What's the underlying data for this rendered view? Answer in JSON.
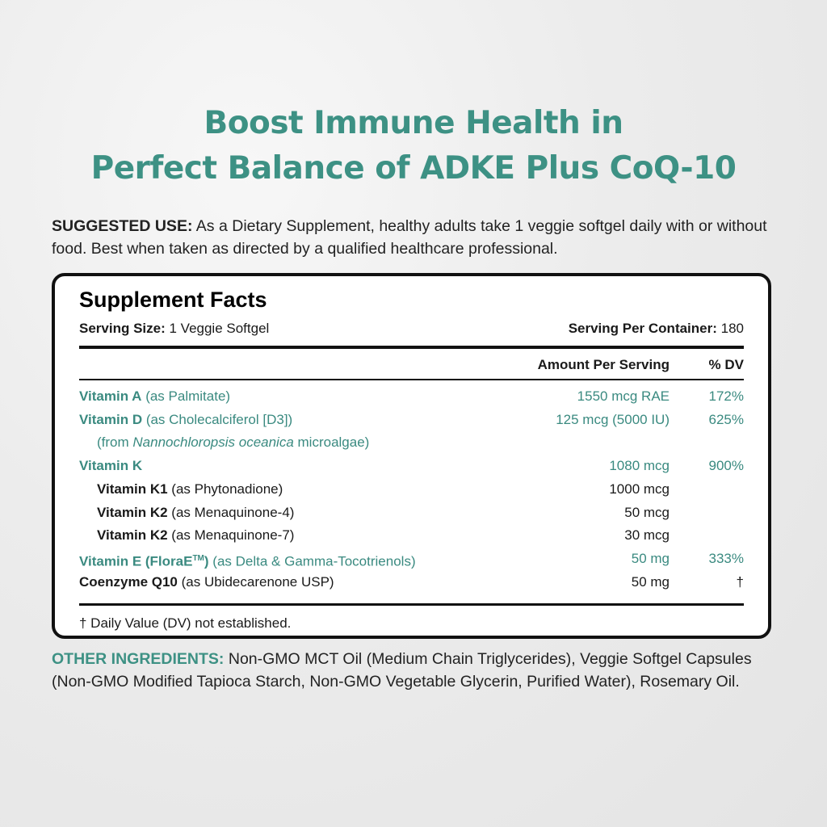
{
  "headline": {
    "line1": "Boost Immune Health in",
    "line2": "Perfect Balance of ADKE Plus CoQ-10"
  },
  "suggested_use": {
    "label": "SUGGESTED USE:",
    "text": " As a Dietary Supplement, healthy adults take 1 veggie softgel daily with or without food. Best when taken as directed by a qualified healthcare professional."
  },
  "facts": {
    "title": "Supplement Facts",
    "serving_size_label": "Serving Size:",
    "serving_size": " 1 Veggie Softgel",
    "servings_label": "Serving Per Container:",
    "servings": " 180",
    "col_amount": "Amount Per Serving",
    "col_dv": "% DV",
    "rows": [
      {
        "name": "Vitamin A",
        "detail": " (as Palmitate)",
        "amount": "1550 mcg RAE",
        "dv": "172%"
      },
      {
        "name": "Vitamin D",
        "detail": " (as Cholecalciferol [D3])",
        "amount": "125 mcg (5000 IU)",
        "dv": "625%"
      },
      {
        "pre": "(from ",
        "italic": "Nannochloropsis oceanica",
        "post": " microalgae)"
      },
      {
        "name": "Vitamin K",
        "detail": "",
        "amount": "1080 mcg",
        "dv": "900%"
      },
      {
        "name": "Vitamin K1",
        "detail": " (as Phytonadione)",
        "amount": "1000 mcg",
        "dv": ""
      },
      {
        "name": "Vitamin K2",
        "detail": " (as Menaquinone-4)",
        "amount": "50 mcg",
        "dv": ""
      },
      {
        "name": "Vitamin K2",
        "detail": " (as Menaquinone-7)",
        "amount": "30 mcg",
        "dv": ""
      },
      {
        "name": "Vitamin E (FloraE",
        "tm": "TM",
        "name_close": ")",
        "detail": " (as Delta & Gamma-Tocotrienols)",
        "amount": "50 mg",
        "dv": "333%"
      },
      {
        "name": "Coenzyme Q10",
        "detail": " (as Ubidecarenone USP)",
        "amount": "50 mg",
        "dv": "†"
      }
    ],
    "footnote": "† Daily Value (DV) not established."
  },
  "other_ingredients": {
    "label": "OTHER INGREDIENTS:",
    "text": " Non-GMO MCT Oil (Medium Chain Triglycerides), Veggie Softgel Capsules (Non-GMO Modified Tapioca Starch, Non-GMO Vegetable Glycerin, Purified Water), Rosemary Oil."
  },
  "colors": {
    "accent": "#3d9184",
    "text": "#1a1a1a"
  }
}
